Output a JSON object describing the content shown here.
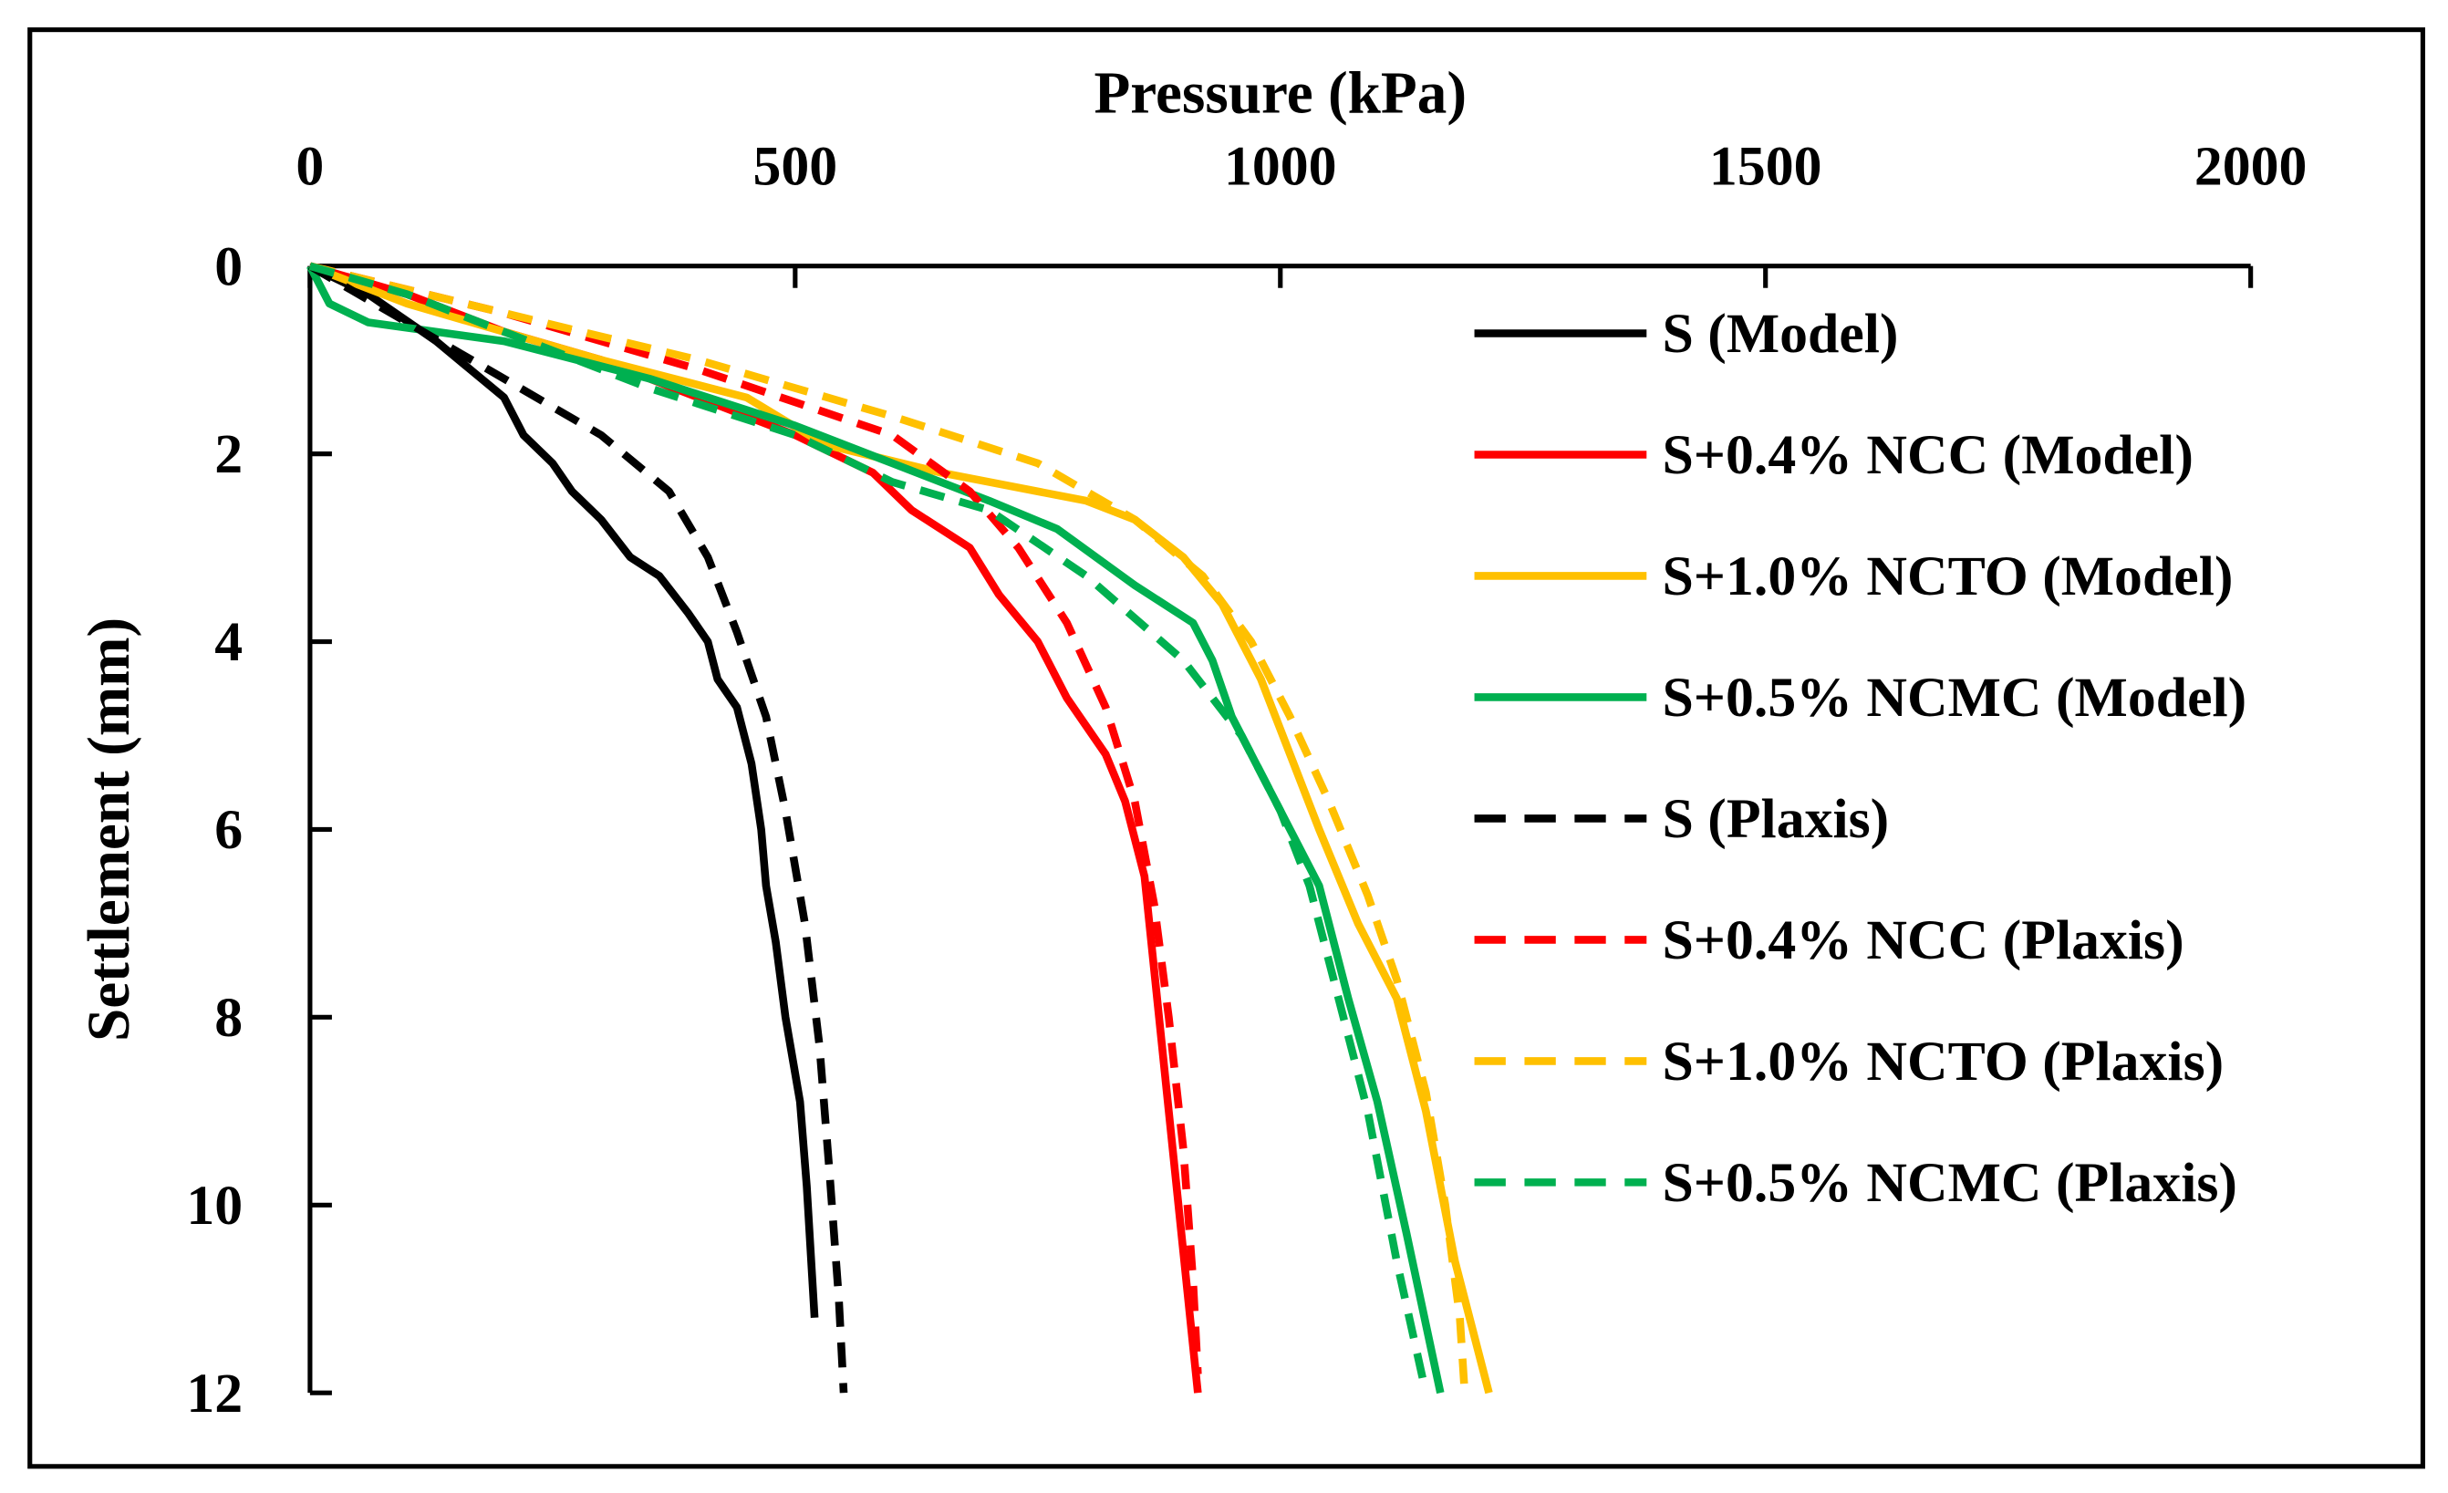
{
  "chart_data": {
    "type": "line",
    "title": "",
    "xlabel": "Pressure (kPa)",
    "ylabel": "Settlement (mm)",
    "xlim": [
      0,
      2000
    ],
    "ylim": [
      0,
      12
    ],
    "x_axis_position": "top",
    "y_inverted": true,
    "xticks": [
      "0",
      "500",
      "1000",
      "1500",
      "2000"
    ],
    "yticks": [
      "0",
      "2",
      "4",
      "6",
      "8",
      "10",
      "12"
    ],
    "grid": false,
    "legend_position": "right",
    "series": [
      {
        "name": "S (Model)",
        "color": "#000000",
        "dash": false,
        "points": [
          [
            0,
            0
          ],
          [
            60,
            0.3
          ],
          [
            130,
            0.8
          ],
          [
            200,
            1.4
          ],
          [
            220,
            1.8
          ],
          [
            250,
            2.1
          ],
          [
            270,
            2.4
          ],
          [
            300,
            2.7
          ],
          [
            330,
            3.1
          ],
          [
            360,
            3.3
          ],
          [
            390,
            3.7
          ],
          [
            410,
            4.0
          ],
          [
            420,
            4.4
          ],
          [
            440,
            4.7
          ],
          [
            455,
            5.3
          ],
          [
            465,
            6.0
          ],
          [
            470,
            6.6
          ],
          [
            480,
            7.2
          ],
          [
            490,
            8.0
          ],
          [
            505,
            8.9
          ],
          [
            512,
            9.8
          ],
          [
            520,
            11.2
          ]
        ]
      },
      {
        "name": "S+0.4% NCC (Model)",
        "color": "#ff0000",
        "dash": false,
        "points": [
          [
            0,
            0
          ],
          [
            100,
            0.3
          ],
          [
            200,
            0.7
          ],
          [
            300,
            1.0
          ],
          [
            400,
            1.4
          ],
          [
            500,
            1.8
          ],
          [
            580,
            2.2
          ],
          [
            620,
            2.6
          ],
          [
            680,
            3.0
          ],
          [
            710,
            3.5
          ],
          [
            750,
            4.0
          ],
          [
            780,
            4.6
          ],
          [
            820,
            5.2
          ],
          [
            840,
            5.7
          ],
          [
            860,
            6.5
          ],
          [
            870,
            7.5
          ],
          [
            885,
            9.0
          ],
          [
            900,
            10.5
          ],
          [
            915,
            12
          ]
        ]
      },
      {
        "name": "S+1.0% NCTO (Model)",
        "color": "#ffc000",
        "dash": false,
        "points": [
          [
            0,
            0
          ],
          [
            100,
            0.4
          ],
          [
            300,
            1.0
          ],
          [
            450,
            1.4
          ],
          [
            530,
            1.9
          ],
          [
            650,
            2.2
          ],
          [
            800,
            2.5
          ],
          [
            850,
            2.7
          ],
          [
            900,
            3.1
          ],
          [
            940,
            3.6
          ],
          [
            980,
            4.4
          ],
          [
            1010,
            5.2
          ],
          [
            1040,
            6.0
          ],
          [
            1080,
            7.0
          ],
          [
            1120,
            7.8
          ],
          [
            1150,
            9.0
          ],
          [
            1180,
            10.6
          ],
          [
            1215,
            12
          ]
        ]
      },
      {
        "name": "S+0.5% NCMC (Model)",
        "color": "#00b050",
        "dash": false,
        "points": [
          [
            0,
            0
          ],
          [
            20,
            0.4
          ],
          [
            60,
            0.6
          ],
          [
            200,
            0.8
          ],
          [
            350,
            1.2
          ],
          [
            500,
            1.7
          ],
          [
            600,
            2.1
          ],
          [
            700,
            2.5
          ],
          [
            770,
            2.8
          ],
          [
            850,
            3.4
          ],
          [
            910,
            3.8
          ],
          [
            930,
            4.2
          ],
          [
            950,
            4.8
          ],
          [
            980,
            5.4
          ],
          [
            1010,
            6.0
          ],
          [
            1040,
            6.6
          ],
          [
            1070,
            7.8
          ],
          [
            1100,
            8.9
          ],
          [
            1130,
            10.3
          ],
          [
            1165,
            12
          ]
        ]
      },
      {
        "name": "S (Plaxis)",
        "color": "#000000",
        "dash": true,
        "points": [
          [
            0,
            0
          ],
          [
            100,
            0.6
          ],
          [
            200,
            1.2
          ],
          [
            300,
            1.8
          ],
          [
            370,
            2.4
          ],
          [
            410,
            3.1
          ],
          [
            440,
            3.9
          ],
          [
            470,
            4.8
          ],
          [
            490,
            5.8
          ],
          [
            510,
            7.0
          ],
          [
            525,
            8.3
          ],
          [
            535,
            9.6
          ],
          [
            545,
            11
          ],
          [
            550,
            12
          ]
        ]
      },
      {
        "name": "S+0.4% NCC (Plaxis)",
        "color": "#ff0000",
        "dash": true,
        "points": [
          [
            0,
            0
          ],
          [
            200,
            0.5
          ],
          [
            400,
            1.1
          ],
          [
            600,
            1.8
          ],
          [
            680,
            2.4
          ],
          [
            730,
            3.0
          ],
          [
            780,
            3.8
          ],
          [
            820,
            4.7
          ],
          [
            850,
            5.7
          ],
          [
            870,
            6.8
          ],
          [
            885,
            8.0
          ],
          [
            900,
            9.4
          ],
          [
            910,
            10.8
          ],
          [
            915,
            11.8
          ]
        ]
      },
      {
        "name": "S+1.0% NCTO (Plaxis)",
        "color": "#ffc000",
        "dash": true,
        "points": [
          [
            0,
            0
          ],
          [
            200,
            0.5
          ],
          [
            400,
            1.0
          ],
          [
            600,
            1.6
          ],
          [
            750,
            2.1
          ],
          [
            850,
            2.7
          ],
          [
            920,
            3.3
          ],
          [
            970,
            4.0
          ],
          [
            1010,
            4.8
          ],
          [
            1050,
            5.7
          ],
          [
            1090,
            6.7
          ],
          [
            1120,
            7.6
          ],
          [
            1150,
            8.8
          ],
          [
            1170,
            10.0
          ],
          [
            1185,
            11.2
          ],
          [
            1190,
            12
          ]
        ]
      },
      {
        "name": "S+0.5% NCMC (Plaxis)",
        "color": "#00b050",
        "dash": true,
        "points": [
          [
            0,
            0
          ],
          [
            100,
            0.3
          ],
          [
            200,
            0.7
          ],
          [
            350,
            1.3
          ],
          [
            500,
            1.8
          ],
          [
            600,
            2.3
          ],
          [
            700,
            2.6
          ],
          [
            800,
            3.3
          ],
          [
            900,
            4.2
          ],
          [
            960,
            5.0
          ],
          [
            1000,
            5.8
          ],
          [
            1030,
            6.6
          ],
          [
            1060,
            7.8
          ],
          [
            1090,
            9.0
          ],
          [
            1120,
            10.6
          ],
          [
            1150,
            12
          ]
        ]
      }
    ]
  }
}
